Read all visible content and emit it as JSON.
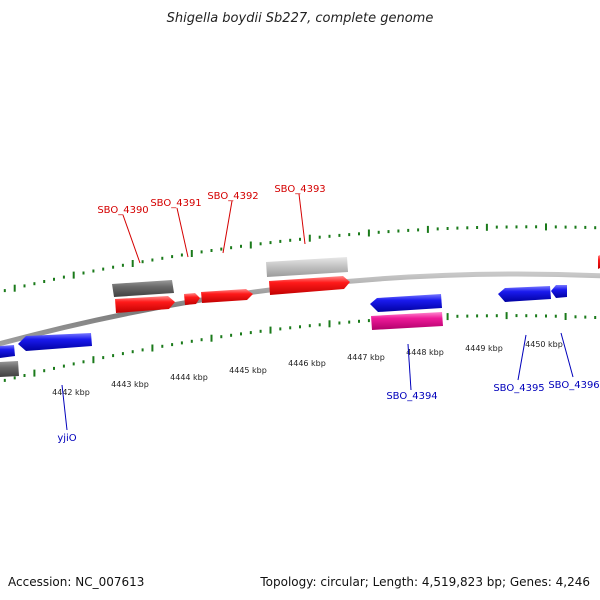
{
  "title": "Shigella boydii Sb227, complete genome",
  "footer": {
    "accession": "Accession: NC_007613",
    "topology": "Topology: circular; Length: 4,519,823 bp; Genes: 4,246"
  },
  "colors": {
    "backbone": "#8a8a8a",
    "tick": "#1a7a1a",
    "forward_gene": "#ff1a1a",
    "reverse_gene": "#1a1aee",
    "pseudogene_light": "#c8c8c8",
    "pseudogene_dark": "#6a6a6a",
    "rna": "#ee1a99",
    "forward_label": "#d40000",
    "reverse_label": "#0000bb"
  },
  "kbp_labels": [
    "4442 kbp",
    "4443 kbp",
    "4444 kbp",
    "4445 kbp",
    "4446 kbp",
    "4447 kbp",
    "4448 kbp",
    "4449 kbp",
    "4450 kbp"
  ],
  "forward_genes": [
    {
      "name": "SBO_4390",
      "label": "SBO_4390"
    },
    {
      "name": "SBO_4391",
      "label": "SBO_4391"
    },
    {
      "name": "SBO_4392",
      "label": "SBO_4392"
    },
    {
      "name": "SBO_4393",
      "label": "SBO_4393"
    }
  ],
  "reverse_genes": [
    {
      "name": "yjiO",
      "label": "yjiO"
    },
    {
      "name": "SBO_4394",
      "label": "SBO_4394"
    },
    {
      "name": "SBO_4395",
      "label": "SBO_4395"
    },
    {
      "name": "SBO_4396",
      "label": "SBO_4396"
    }
  ]
}
